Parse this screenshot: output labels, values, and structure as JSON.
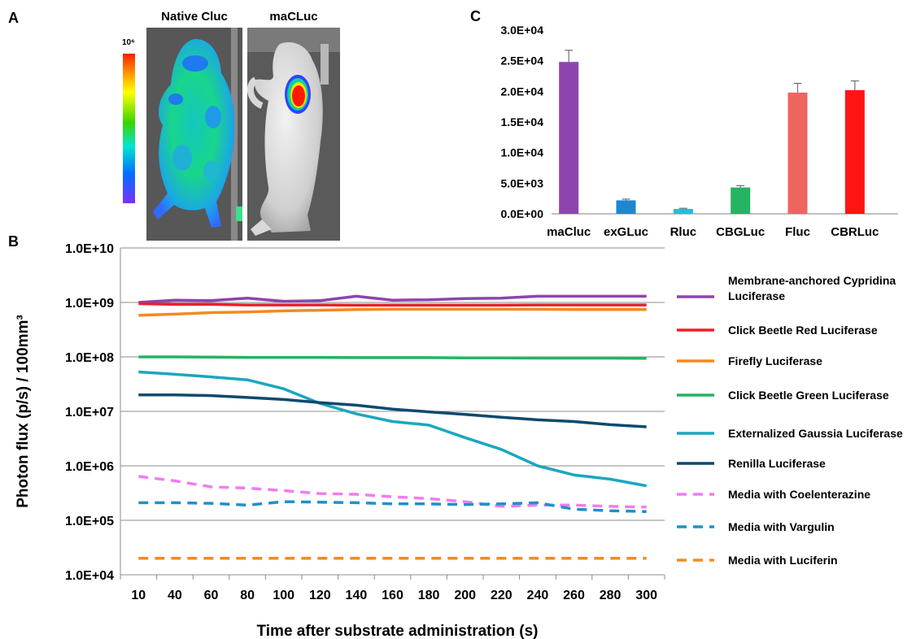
{
  "panels": {
    "a": "A",
    "b": "B",
    "c": "C"
  },
  "images": {
    "native_title": "Native Cluc",
    "macluc_title": "maCLuc",
    "scale_max": "10⁶"
  },
  "chart_data": [
    {
      "type": "line",
      "panel": "B",
      "xlabel": "Time after substrate administration (s)",
      "ylabel": "Photon flux (p/s) / 100mm³",
      "x": [
        10,
        40,
        60,
        80,
        100,
        120,
        140,
        160,
        180,
        200,
        220,
        240,
        260,
        280,
        300
      ],
      "yscale": "log",
      "ylim": [
        10000,
        10000000000
      ],
      "ytick_labels": [
        "1.0E+04",
        "1.0E+05",
        "1.0E+06",
        "1.0E+07",
        "1.0E+08",
        "1.0E+09",
        "1.0E+10"
      ],
      "grid": "horizontal",
      "legend_position": "right",
      "series": [
        {
          "name": "Membrane-anchored Cypridina Luciferase",
          "color": "#8e44ad",
          "style": "solid",
          "values": [
            1000000000.0,
            1100000000.0,
            1080000000.0,
            1200000000.0,
            1050000000.0,
            1080000000.0,
            1300000000.0,
            1100000000.0,
            1120000000.0,
            1180000000.0,
            1200000000.0,
            1300000000.0,
            1300000000.0,
            1300000000.0,
            1300000000.0
          ]
        },
        {
          "name": "Click Beetle Red Luciferase",
          "color": "#e8202a",
          "style": "solid",
          "values": [
            950000000.0,
            920000000.0,
            920000000.0,
            900000000.0,
            900000000.0,
            900000000.0,
            890000000.0,
            890000000.0,
            890000000.0,
            890000000.0,
            890000000.0,
            900000000.0,
            900000000.0,
            900000000.0,
            900000000.0
          ]
        },
        {
          "name": "Firefly Luciferase",
          "color": "#f28a1e",
          "style": "solid",
          "values": [
            580000000.0,
            610000000.0,
            650000000.0,
            670000000.0,
            700000000.0,
            720000000.0,
            740000000.0,
            750000000.0,
            750000000.0,
            750000000.0,
            750000000.0,
            750000000.0,
            740000000.0,
            740000000.0,
            740000000.0
          ]
        },
        {
          "name": "Click Beetle Green Luciferase",
          "color": "#26b362",
          "style": "solid",
          "values": [
            100000000.0,
            100000000.0,
            99000000.0,
            98000000.0,
            98000000.0,
            98000000.0,
            97000000.0,
            97000000.0,
            97000000.0,
            96000000.0,
            96000000.0,
            95000000.0,
            95000000.0,
            95000000.0,
            94000000.0
          ]
        },
        {
          "name": "Externalized Gaussia Luciferase",
          "color": "#1aa7be",
          "style": "solid",
          "values": [
            53000000.0,
            48000000.0,
            43000000.0,
            38000000.0,
            26000000.0,
            14000000.0,
            9000000.0,
            6500000.0,
            5600000.0,
            3300000.0,
            2000000.0,
            1000000.0,
            680000.0,
            570000.0,
            430000.0
          ]
        },
        {
          "name": "Renilla Luciferase",
          "color": "#0c4a6e",
          "style": "solid",
          "values": [
            20000000.0,
            20000000.0,
            19500000.0,
            18000000.0,
            16500000.0,
            14500000.0,
            13000000.0,
            11000000.0,
            9800000.0,
            8800000.0,
            7800000.0,
            7000000.0,
            6500000.0,
            5700000.0,
            5200000.0
          ]
        },
        {
          "name": "Media with Coelenterazine",
          "color": "#f07cf0",
          "style": "dashed",
          "values": [
            640000.0,
            530000.0,
            410000.0,
            390000.0,
            350000.0,
            310000.0,
            300000.0,
            270000.0,
            250000.0,
            220000.0,
            180000.0,
            190000.0,
            190000.0,
            180000.0,
            175000.0
          ]
        },
        {
          "name": "Media with Vargulin",
          "color": "#1e8fd0",
          "style": "dashed",
          "values": [
            210000.0,
            210000.0,
            205000.0,
            190000.0,
            220000.0,
            215000.0,
            210000.0,
            200000.0,
            200000.0,
            195000.0,
            200000.0,
            210000.0,
            160000.0,
            150000.0,
            145000.0
          ]
        },
        {
          "name": "Media with Luciferin",
          "color": "#f28a1e",
          "style": "dashed",
          "values": [
            20000.0,
            20000.0,
            20000.0,
            20000.0,
            20000.0,
            20000.0,
            20000.0,
            20000.0,
            20000.0,
            20000.0,
            20000.0,
            20000.0,
            20000.0,
            20000.0,
            20000.0
          ]
        }
      ]
    },
    {
      "type": "bar",
      "panel": "C",
      "categories": [
        "maCluc",
        "exGLuc",
        "Rluc",
        "CBGLuc",
        "Fluc",
        "CBRLuc"
      ],
      "values": [
        24800,
        2200,
        800,
        4300,
        19800,
        20200
      ],
      "errors": [
        1900,
        200,
        100,
        300,
        1500,
        1500
      ],
      "colors": [
        "#8e44ad",
        "#1f86cf",
        "#1fbde8",
        "#26b362",
        "#ee6560",
        "#ff1414"
      ],
      "ylim": [
        0,
        30000
      ],
      "ytick_labels": [
        "0.0E+00",
        "5.0E+03",
        "1.0E+04",
        "1.5E+04",
        "2.0E+04",
        "2.5E+04",
        "3.0E+04"
      ]
    }
  ]
}
